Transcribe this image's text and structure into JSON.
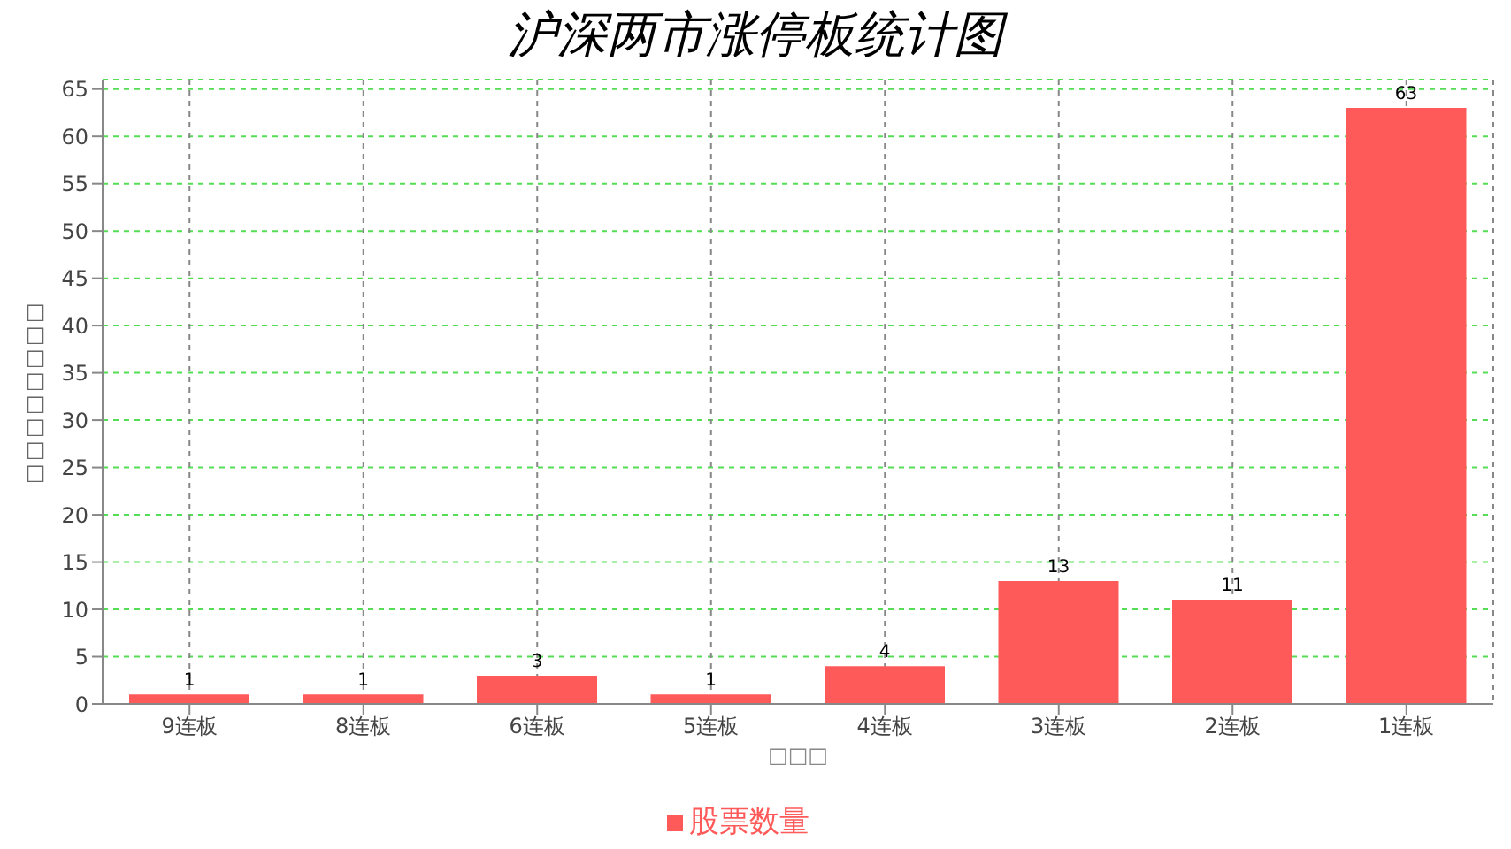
{
  "chart_data": {
    "type": "bar",
    "title": "沪深两市涨停板统计图",
    "xlabel": "□□□",
    "ylabel": "□□□□□□□□",
    "categories": [
      "9连板",
      "8连板",
      "6连板",
      "5连板",
      "4连板",
      "3连板",
      "2连板",
      "1连板"
    ],
    "series": [
      {
        "name": "股票数量",
        "color": "#ff5a5a",
        "values": [
          1,
          1,
          3,
          1,
          4,
          13,
          11,
          63
        ]
      }
    ],
    "ylim": [
      0,
      66
    ],
    "yticks": [
      0,
      5,
      10,
      15,
      20,
      25,
      30,
      35,
      40,
      45,
      50,
      55,
      60,
      65
    ],
    "grid": true,
    "legend": "bottom",
    "data_labels": true
  }
}
